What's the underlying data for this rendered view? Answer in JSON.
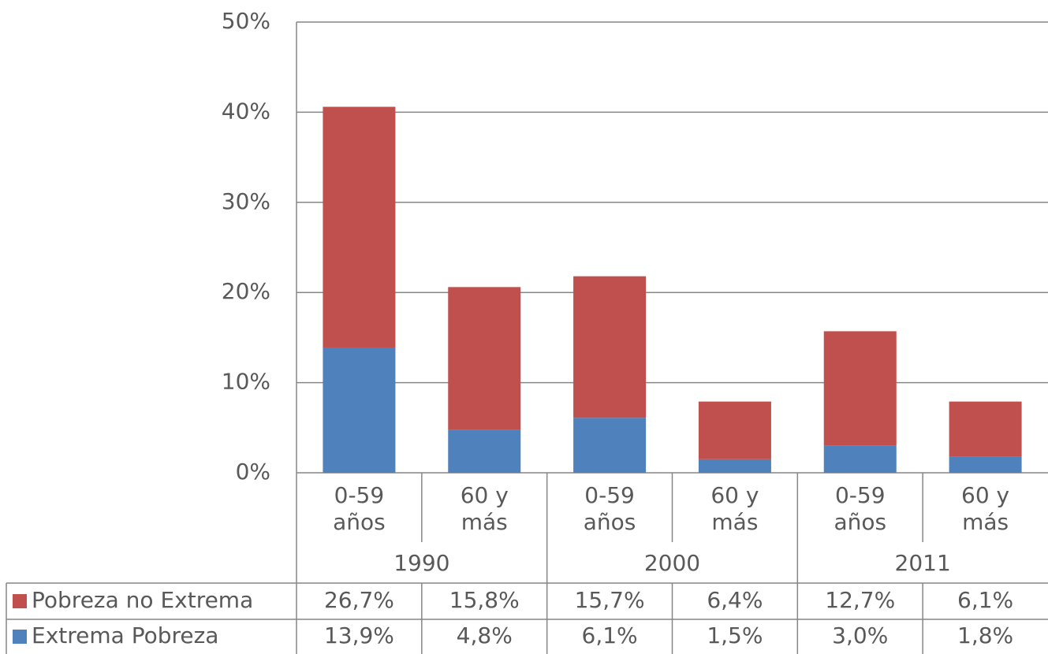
{
  "chart_data": {
    "type": "stacked-bar",
    "categories": [
      "0-59 años",
      "60 y más",
      "0-59 años",
      "60 y más",
      "0-59 años",
      "60 y más"
    ],
    "groups": [
      "1990",
      "2000",
      "2011"
    ],
    "series": [
      {
        "name": "Extrema Pobreza",
        "color": "#4f81bd",
        "values": [
          13.9,
          4.8,
          6.1,
          1.5,
          3.0,
          1.8
        ],
        "value_labels": [
          "13,9%",
          "4,8%",
          "6,1%",
          "1,5%",
          "3,0%",
          "1,8%"
        ]
      },
      {
        "name": "Pobreza no Extrema",
        "color": "#c0504d",
        "values": [
          26.7,
          15.8,
          15.7,
          6.4,
          12.7,
          6.1
        ],
        "value_labels": [
          "26,7%",
          "15,8%",
          "15,7%",
          "6,4%",
          "12,7%",
          "6,1%"
        ]
      }
    ],
    "ylim": [
      0,
      50
    ],
    "yticks": [
      {
        "value": 0,
        "label": "0%"
      },
      {
        "value": 10,
        "label": "10%"
      },
      {
        "value": 20,
        "label": "20%"
      },
      {
        "value": 30,
        "label": "30%"
      },
      {
        "value": 40,
        "label": "40%"
      },
      {
        "value": 50,
        "label": "50%"
      }
    ],
    "grid": true
  }
}
